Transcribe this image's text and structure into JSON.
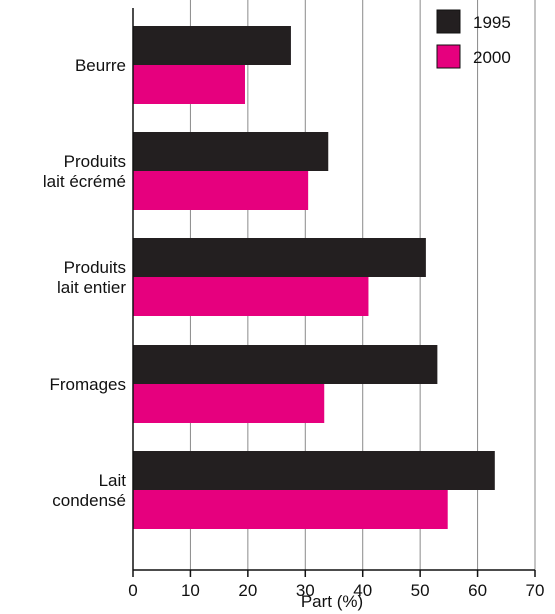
{
  "chart_data": {
    "type": "bar",
    "orientation": "horizontal",
    "categories": [
      [
        "Beurre"
      ],
      [
        "Produits",
        "lait écrémé"
      ],
      [
        "Produits",
        "lait entier"
      ],
      [
        "Fromages"
      ],
      [
        "Lait",
        "condensé"
      ]
    ],
    "series": [
      {
        "name": "1995",
        "color": "#231f20",
        "values": [
          27.5,
          34,
          51,
          53,
          63
        ]
      },
      {
        "name": "2000",
        "color": "#e6007e",
        "values": [
          19.5,
          30.5,
          41,
          33.3,
          54.8
        ]
      }
    ],
    "xlabel": "Part (%)",
    "ylabel": "",
    "xlim": [
      0,
      70
    ],
    "xticks": [
      "0",
      "10",
      "20",
      "30",
      "40",
      "50",
      "60",
      "70"
    ],
    "grid": "vertical",
    "legend": "top-right"
  }
}
